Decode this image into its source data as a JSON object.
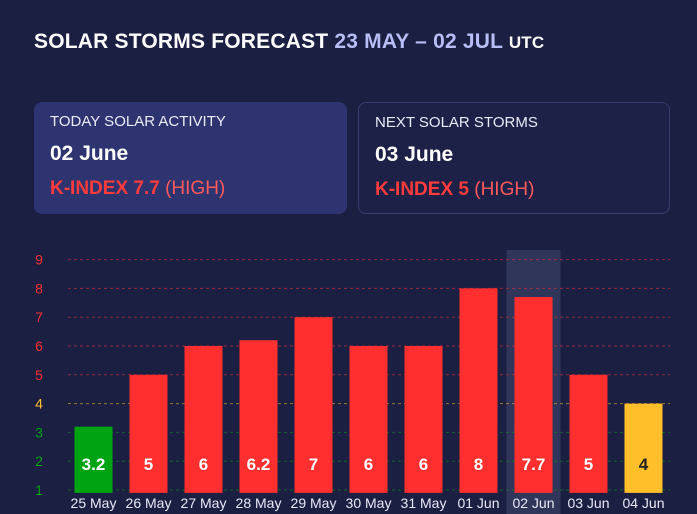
{
  "header": {
    "title_main": "SOLAR STORMS FORECAST",
    "title_range": "23 MAY – 02 JUL",
    "title_tz": "UTC"
  },
  "today_card": {
    "label": "TODAY SOLAR ACTIVITY",
    "date": "02 June",
    "k_label": "K-INDEX 7.7",
    "level": "(HIGH)"
  },
  "next_card": {
    "label": "NEXT SOLAR STORMS",
    "date": "03 June",
    "k_label": "K-INDEX 5",
    "level": "(HIGH)"
  },
  "colors": {
    "background": "#1b1f42",
    "high": "#ff2f2f",
    "medium": "#ffbf2b",
    "low": "#00a312",
    "highlight_column": "#30355a"
  },
  "chart_data": {
    "type": "bar",
    "categories": [
      "25 May",
      "26 May",
      "27 May",
      "28 May",
      "29 May",
      "30 May",
      "31 May",
      "01 Jun",
      "02 Jun",
      "03 Jun",
      "04 Jun"
    ],
    "values": [
      3.2,
      5,
      6,
      6.2,
      7,
      6,
      6,
      8,
      7.7,
      5,
      4
    ],
    "value_labels": [
      "3.2",
      "5",
      "6",
      "6.2",
      "7",
      "6",
      "6",
      "8",
      "7.7",
      "5",
      "4"
    ],
    "bar_colors": [
      "low",
      "high",
      "high",
      "high",
      "high",
      "high",
      "high",
      "high",
      "high",
      "high",
      "medium"
    ],
    "highlighted_category": "02 Jun",
    "y_ticks": [
      "1",
      "2",
      "3",
      "4",
      "5",
      "6",
      "7",
      "8",
      "9"
    ],
    "y_tick_colors": [
      "low",
      "low",
      "low",
      "medium",
      "high",
      "high",
      "high",
      "high",
      "high"
    ],
    "ylim": [
      1,
      9
    ],
    "grid": true,
    "legend": "none"
  }
}
